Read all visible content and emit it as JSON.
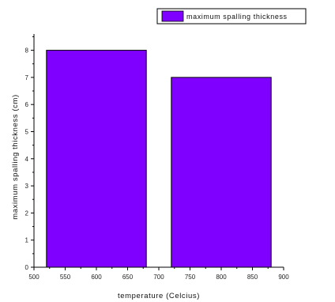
{
  "chart_data": {
    "type": "bar",
    "title": "",
    "xlabel": "temperature (Celcius)",
    "ylabel": "maximum spalling thickness (cm)",
    "xlim": [
      500,
      900
    ],
    "ylim": [
      0,
      8.6
    ],
    "x_ticks": [
      500,
      550,
      600,
      650,
      700,
      750,
      800,
      850,
      900
    ],
    "y_ticks": [
      0,
      1,
      2,
      3,
      4,
      5,
      6,
      7,
      8
    ],
    "grid": false,
    "legend_position": "top-right",
    "series": [
      {
        "name": "maximum spalling thickness",
        "color": "#8000ff",
        "bars": [
          {
            "x_start": 520,
            "x_end": 680,
            "value": 8
          },
          {
            "x_start": 720,
            "x_end": 880,
            "value": 7
          }
        ]
      }
    ]
  }
}
